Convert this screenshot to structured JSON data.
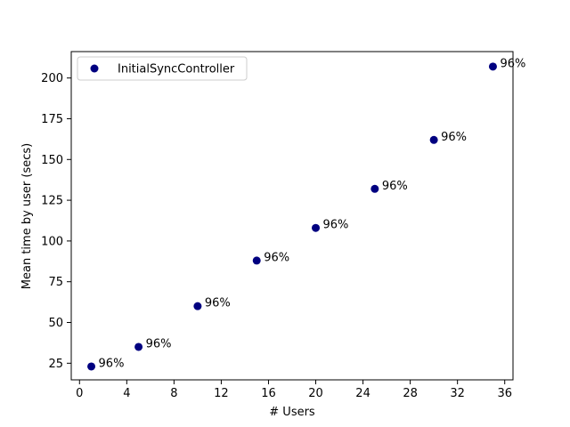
{
  "chart_data": {
    "type": "scatter",
    "xlabel": "# Users",
    "ylabel": "Mean time by user (secs)",
    "xlim": [
      -0.7,
      36.7
    ],
    "ylim": [
      14.8,
      216.2
    ],
    "xticks": [
      0,
      4,
      8,
      12,
      16,
      20,
      24,
      28,
      32,
      36
    ],
    "xtick_labels": [
      "0",
      "4",
      "8",
      "12",
      "16",
      "20",
      "24",
      "28",
      "32",
      "36"
    ],
    "yticks": [
      25,
      50,
      75,
      100,
      125,
      150,
      175,
      200
    ],
    "ytick_labels": [
      "25",
      "50",
      "75",
      "100",
      "125",
      "150",
      "175",
      "200"
    ],
    "grid": false,
    "legend_position": "top-left",
    "series": [
      {
        "name": "InitialSyncController",
        "color": "#000080",
        "marker": "circle",
        "x": [
          1,
          5,
          10,
          15,
          20,
          25,
          30,
          35
        ],
        "y": [
          23,
          35,
          60,
          88,
          108,
          132,
          162,
          207
        ],
        "point_labels": [
          "96%",
          "96%",
          "96%",
          "96%",
          "96%",
          "96%",
          "96%",
          "96%"
        ]
      }
    ]
  }
}
